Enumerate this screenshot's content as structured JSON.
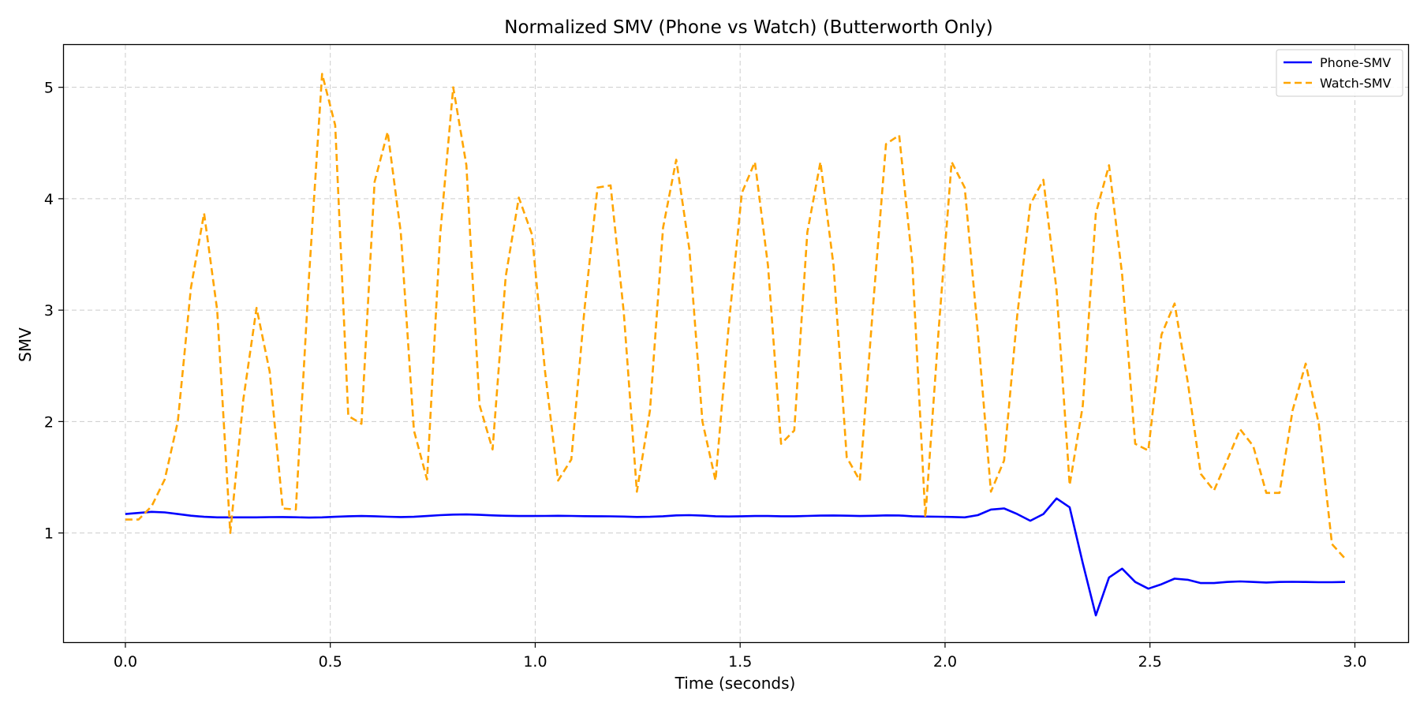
{
  "chart_data": {
    "type": "line",
    "title": "Normalized SMV (Phone vs Watch) (Butterworth Only)",
    "xlabel": "Time (seconds)",
    "ylabel": "SMV",
    "xlim": [
      -0.15,
      3.13
    ],
    "ylim": [
      0.02,
      5.38
    ],
    "xticks": [
      0.0,
      0.5,
      1.0,
      1.5,
      2.0,
      2.5,
      3.0
    ],
    "xtick_labels": [
      "0.0",
      "0.5",
      "1.0",
      "1.5",
      "2.0",
      "2.5",
      "3.0"
    ],
    "yticks": [
      1,
      2,
      3,
      4,
      5
    ],
    "ytick_labels": [
      "1",
      "2",
      "3",
      "4",
      "5"
    ],
    "grid": true,
    "legend_position": "top-right",
    "series": [
      {
        "name": "Phone-SMV",
        "color": "#0000ff",
        "style": "solid",
        "x": [
          0.0,
          0.032,
          0.064,
          0.096,
          0.128,
          0.16,
          0.192,
          0.224,
          0.256,
          0.288,
          0.32,
          0.352,
          0.384,
          0.416,
          0.448,
          0.48,
          0.512,
          0.544,
          0.576,
          0.608,
          0.64,
          0.672,
          0.704,
          0.736,
          0.768,
          0.8,
          0.832,
          0.864,
          0.896,
          0.928,
          0.96,
          0.992,
          1.024,
          1.056,
          1.088,
          1.12,
          1.152,
          1.184,
          1.216,
          1.248,
          1.28,
          1.312,
          1.344,
          1.376,
          1.408,
          1.44,
          1.472,
          1.504,
          1.536,
          1.568,
          1.6,
          1.632,
          1.664,
          1.696,
          1.728,
          1.76,
          1.792,
          1.824,
          1.856,
          1.888,
          1.92,
          1.952,
          1.984,
          2.016,
          2.048,
          2.08,
          2.112,
          2.144,
          2.176,
          2.208,
          2.24,
          2.272,
          2.304,
          2.336,
          2.368,
          2.4,
          2.432,
          2.464,
          2.496,
          2.528,
          2.56,
          2.592,
          2.624,
          2.656,
          2.688,
          2.72,
          2.752,
          2.784,
          2.816,
          2.848,
          2.88,
          2.912,
          2.944,
          2.976
        ],
        "y": [
          1.17,
          1.18,
          1.19,
          1.185,
          1.17,
          1.155,
          1.145,
          1.14,
          1.14,
          1.14,
          1.14,
          1.142,
          1.143,
          1.141,
          1.138,
          1.14,
          1.145,
          1.15,
          1.152,
          1.15,
          1.146,
          1.143,
          1.145,
          1.152,
          1.16,
          1.165,
          1.166,
          1.163,
          1.158,
          1.154,
          1.152,
          1.152,
          1.153,
          1.154,
          1.153,
          1.151,
          1.15,
          1.149,
          1.147,
          1.144,
          1.145,
          1.15,
          1.158,
          1.16,
          1.156,
          1.15,
          1.148,
          1.15,
          1.152,
          1.152,
          1.15,
          1.15,
          1.153,
          1.156,
          1.157,
          1.155,
          1.152,
          1.154,
          1.158,
          1.157,
          1.15,
          1.147,
          1.146,
          1.144,
          1.14,
          1.16,
          1.21,
          1.22,
          1.17,
          1.11,
          1.17,
          1.31,
          1.23,
          0.73,
          0.26,
          0.6,
          0.68,
          0.56,
          0.5,
          0.54,
          0.59,
          0.58,
          0.55,
          0.55,
          0.56,
          0.565,
          0.56,
          0.555,
          0.56,
          0.562,
          0.56,
          0.558,
          0.558,
          0.56
        ]
      },
      {
        "name": "Watch-SMV",
        "color": "#ffa500",
        "style": "dashed",
        "x": [
          0.0,
          0.032,
          0.064,
          0.096,
          0.128,
          0.16,
          0.192,
          0.224,
          0.256,
          0.288,
          0.32,
          0.352,
          0.384,
          0.416,
          0.448,
          0.48,
          0.512,
          0.544,
          0.576,
          0.608,
          0.64,
          0.672,
          0.704,
          0.736,
          0.768,
          0.8,
          0.832,
          0.864,
          0.896,
          0.928,
          0.96,
          0.992,
          1.024,
          1.056,
          1.088,
          1.12,
          1.152,
          1.184,
          1.216,
          1.248,
          1.28,
          1.312,
          1.344,
          1.376,
          1.408,
          1.44,
          1.472,
          1.504,
          1.536,
          1.568,
          1.6,
          1.632,
          1.664,
          1.696,
          1.728,
          1.76,
          1.792,
          1.824,
          1.856,
          1.888,
          1.92,
          1.952,
          1.984,
          2.016,
          2.048,
          2.08,
          2.112,
          2.144,
          2.176,
          2.208,
          2.24,
          2.272,
          2.304,
          2.336,
          2.368,
          2.4,
          2.432,
          2.464,
          2.496,
          2.528,
          2.56,
          2.592,
          2.624,
          2.656,
          2.688,
          2.72,
          2.752,
          2.784,
          2.816,
          2.848,
          2.88,
          2.912,
          2.944,
          2.976
        ],
        "y": [
          1.12,
          1.12,
          1.24,
          1.48,
          2.0,
          3.2,
          3.87,
          3.0,
          1.0,
          2.2,
          3.02,
          2.45,
          1.22,
          1.21,
          3.3,
          5.12,
          4.66,
          2.05,
          1.98,
          4.15,
          4.6,
          3.7,
          1.92,
          1.48,
          3.67,
          5.0,
          4.3,
          2.15,
          1.75,
          3.3,
          4.01,
          3.68,
          2.45,
          1.47,
          1.66,
          3.0,
          4.1,
          4.12,
          2.98,
          1.37,
          2.1,
          3.74,
          4.35,
          3.55,
          2.0,
          1.47,
          2.85,
          4.05,
          4.33,
          3.4,
          1.8,
          1.92,
          3.7,
          4.33,
          3.4,
          1.68,
          1.47,
          3.02,
          4.49,
          4.57,
          3.43,
          1.14,
          2.8,
          4.33,
          4.1,
          2.8,
          1.37,
          1.65,
          2.95,
          3.95,
          4.17,
          3.18,
          1.43,
          2.14,
          3.87,
          4.3,
          3.32,
          1.8,
          1.74,
          2.78,
          3.06,
          2.36,
          1.53,
          1.38,
          1.65,
          1.93,
          1.78,
          1.36,
          1.36,
          2.1,
          2.52,
          1.98,
          0.9,
          0.77
        ]
      }
    ]
  }
}
